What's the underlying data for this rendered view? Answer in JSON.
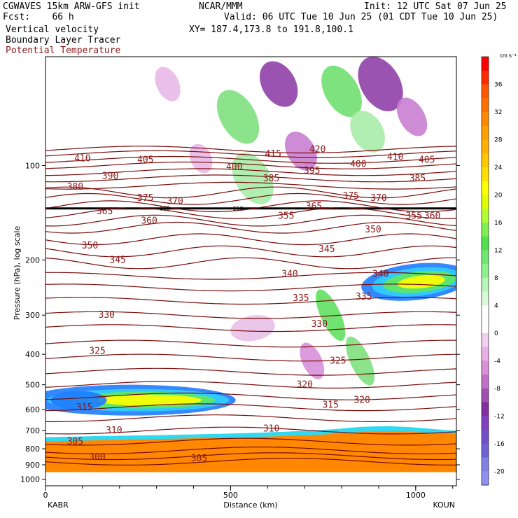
{
  "header": {
    "model_line": "CGWAVES 15km ARW-GFS init",
    "fcst_label": "Fcst:",
    "fcst_value": "66 h",
    "org": "NCAR/MMM",
    "init": "Init: 12 UTC Sat 07 Jun 25",
    "valid": "Valid: 06 UTC Tue 10 Jun 25 (01 CDT Tue 10 Jun 25)",
    "xy": "XY= 187.4,173.8 to 191.8,100.1",
    "field1": "Vertical velocity",
    "field2": "Boundary Layer Tracer",
    "field3": "Potential Temperature"
  },
  "colors": {
    "theta_line": "#7a0c0c",
    "tracer_line": "#000000",
    "field3_text": "#8b1a1a"
  },
  "chart_data": {
    "type": "heatmap",
    "title": "",
    "xlabel": "Distance (km)",
    "ylabel": "Pressure (hPa), log scale",
    "xlim": [
      0,
      1110
    ],
    "ylim": [
      1050,
      45
    ],
    "x_ticks": [
      0,
      500,
      1000
    ],
    "x_tick_labels": [
      "0",
      "500",
      "1000"
    ],
    "y_ticks": [
      100,
      200,
      300,
      400,
      500,
      600,
      700,
      800,
      900,
      1000
    ],
    "endpoints": {
      "left": "KABR",
      "right": "KOUN"
    },
    "colorbar": {
      "units": "cm s⁻¹",
      "levels": [
        -22,
        -20,
        -18,
        -16,
        -14,
        -12,
        -10,
        -8,
        -6,
        -4,
        -2,
        2,
        4,
        6,
        8,
        10,
        12,
        14,
        16,
        18,
        20,
        22,
        24,
        26,
        28,
        30,
        32,
        34,
        36,
        38,
        40
      ],
      "labels": [
        36,
        32,
        28,
        24,
        20,
        16,
        12,
        8,
        4,
        0,
        -4,
        -8,
        -12,
        -16,
        -20
      ],
      "colors": [
        "#ff0000",
        "#ff2a00",
        "#ff5500",
        "#ff7000",
        "#ff8800",
        "#ffa000",
        "#ffb000",
        "#ffc800",
        "#ffe000",
        "#ffff00",
        "#e0ff00",
        "#b0ff30",
        "#80f050",
        "#50e050",
        "#70e870",
        "#90f090",
        "#b8f5b8",
        "#d8fad8",
        "#ffffff",
        "#ffffff",
        "#f0d0f0",
        "#e8b0e8",
        "#d890d8",
        "#c070c8",
        "#a050b0",
        "#8030a0",
        "#8040c0",
        "#7050c8",
        "#7060d8",
        "#8080e0",
        "#9090f0"
      ]
    },
    "theta_contours": [
      {
        "label": "300",
        "p": 850,
        "x": 140
      },
      {
        "label": "305",
        "p": 760,
        "x": 80
      },
      {
        "label": "305",
        "p": 860,
        "x": 415
      },
      {
        "label": "310",
        "p": 700,
        "x": 185
      },
      {
        "label": "310",
        "p": 690,
        "x": 610
      },
      {
        "label": "315",
        "p": 590,
        "x": 105
      },
      {
        "label": "315",
        "p": 580,
        "x": 770
      },
      {
        "label": "320",
        "p": 500,
        "x": 700
      },
      {
        "label": "320",
        "p": 560,
        "x": 855
      },
      {
        "label": "325",
        "p": 390,
        "x": 140
      },
      {
        "label": "325",
        "p": 420,
        "x": 790
      },
      {
        "label": "330",
        "p": 300,
        "x": 165
      },
      {
        "label": "330",
        "p": 320,
        "x": 740
      },
      {
        "label": "335",
        "p": 265,
        "x": 690
      },
      {
        "label": "335",
        "p": 262,
        "x": 860
      },
      {
        "label": "340",
        "p": 222,
        "x": 660
      },
      {
        "label": "340",
        "p": 222,
        "x": 905
      },
      {
        "label": "345",
        "p": 200,
        "x": 195
      },
      {
        "label": "345",
        "p": 185,
        "x": 760
      },
      {
        "label": "350",
        "p": 180,
        "x": 120
      },
      {
        "label": "350",
        "p": 160,
        "x": 885
      },
      {
        "label": "355",
        "p": 145,
        "x": 650
      },
      {
        "label": "355",
        "p": 145,
        "x": 995
      },
      {
        "label": "360",
        "p": 150,
        "x": 280
      },
      {
        "label": "360",
        "p": 145,
        "x": 1045
      },
      {
        "label": "365",
        "p": 140,
        "x": 160
      },
      {
        "label": "365",
        "p": 135,
        "x": 725
      },
      {
        "label": "370",
        "p": 130,
        "x": 350
      },
      {
        "label": "370",
        "p": 127,
        "x": 900
      },
      {
        "label": "375",
        "p": 127,
        "x": 270
      },
      {
        "label": "375",
        "p": 125,
        "x": 825
      },
      {
        "label": "380",
        "p": 117,
        "x": 80
      },
      {
        "label": "385",
        "p": 110,
        "x": 610
      },
      {
        "label": "385",
        "p": 110,
        "x": 1005
      },
      {
        "label": "390",
        "p": 108,
        "x": 175
      },
      {
        "label": "395",
        "p": 104,
        "x": 720
      },
      {
        "label": "400",
        "p": 101,
        "x": 510
      },
      {
        "label": "400",
        "p": 99,
        "x": 845
      },
      {
        "label": "405",
        "p": 96,
        "x": 270
      },
      {
        "label": "405",
        "p": 96,
        "x": 1030
      },
      {
        "label": "410",
        "p": 95,
        "x": 100
      },
      {
        "label": "410",
        "p": 94,
        "x": 945
      },
      {
        "label": "415",
        "p": 92,
        "x": 615
      },
      {
        "label": "420",
        "p": 89,
        "x": 735
      }
    ],
    "tracer_labels": [
      {
        "label": "150",
        "p": 137,
        "x": 322
      },
      {
        "label": "150",
        "p": 137,
        "x": 520
      }
    ]
  }
}
